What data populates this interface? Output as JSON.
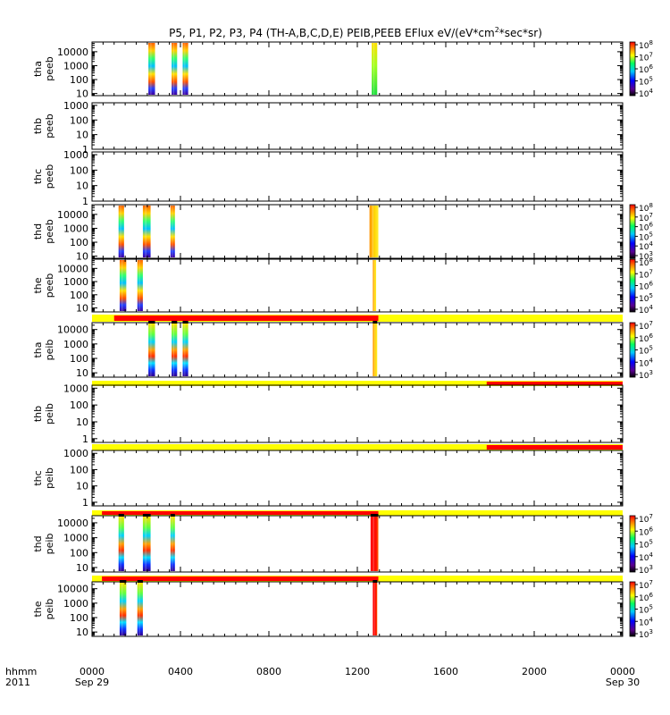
{
  "title": "P5, P1, P2, P3, P4 (TH-A,B,C,D,E) PEIB,PEEB EFlux eV/(eV*cm",
  "title_sup": "2",
  "title_tail": "*sec*sr)",
  "footer": {
    "hhmm_label": "hhmm",
    "year_label": "2011",
    "start_date": "Sep 29",
    "end_date": "Sep 30",
    "x_ticks": [
      "0000",
      "0400",
      "0800",
      "1200",
      "1600",
      "2000",
      "0000"
    ]
  },
  "chart_data": {
    "type": "heatmap",
    "title": "P5, P1, P2, P3, P4 (TH-A,B,C,D,E) PEIB,PEEB EFlux eV/(eV*cm^2*sec*sr)",
    "x_unit": "hhmm",
    "x_range_hours": [
      0,
      24
    ],
    "x_tick_hours": [
      0,
      4,
      8,
      12,
      16,
      20,
      24
    ],
    "colormap": [
      "#000000",
      "#5a0090",
      "#0000ff",
      "#00c8ff",
      "#00ff60",
      "#ffff00",
      "#ff8000",
      "#ff0000"
    ],
    "panels": [
      {
        "id": "tha-peeb",
        "probe": "tha",
        "instrument": "peeb",
        "ylabel": "tha\npeeb",
        "yticks": [
          "10",
          "100",
          "1000",
          "10000"
        ],
        "ylim": [
          7,
          50000
        ],
        "cbar_ticks": [
          "10^8",
          "10^7",
          "10^6",
          "10^5",
          "10^4"
        ],
        "flag_bar": null,
        "bursts": [
          {
            "start": 2.55,
            "end": 2.85,
            "style": "electron"
          },
          {
            "start": 3.6,
            "end": 3.85,
            "style": "electron"
          },
          {
            "start": 4.1,
            "end": 4.35,
            "style": "electron"
          },
          {
            "start": 12.65,
            "end": 12.9,
            "style": "greenband"
          }
        ]
      },
      {
        "id": "thb-peeb",
        "probe": "thb",
        "instrument": "peeb",
        "ylabel": "thb\npeeb",
        "yticks": [
          "1",
          "10",
          "100",
          "1000"
        ],
        "ylim": [
          1,
          1500
        ],
        "cbar_ticks": [],
        "flag_bar": null,
        "bursts": []
      },
      {
        "id": "thc-peeb",
        "probe": "thc",
        "instrument": "peeb",
        "ylabel": "thc\npeeb",
        "yticks": [
          "1",
          "10",
          "100",
          "1000"
        ],
        "ylim": [
          1,
          1500
        ],
        "cbar_ticks": [],
        "flag_bar": null,
        "bursts": []
      },
      {
        "id": "thd-peeb",
        "probe": "thd",
        "instrument": "peeb",
        "ylabel": "thd\npeeb",
        "yticks": [
          "10",
          "100",
          "1000",
          "10000"
        ],
        "ylim": [
          7,
          50000
        ],
        "cbar_ticks": [
          "10^8",
          "10^7",
          "10^6",
          "10^5",
          "10^4",
          "10^3"
        ],
        "flag_bar": null,
        "bursts": [
          {
            "start": 1.2,
            "end": 1.45,
            "style": "electron"
          },
          {
            "start": 2.3,
            "end": 2.65,
            "style": "electron"
          },
          {
            "start": 3.55,
            "end": 3.75,
            "style": "electron"
          },
          {
            "start": 12.55,
            "end": 12.95,
            "style": "yellowband"
          }
        ]
      },
      {
        "id": "the-peeb",
        "probe": "the",
        "instrument": "peeb",
        "ylabel": "the\npeeb",
        "yticks": [
          "10",
          "100",
          "1000",
          "10000"
        ],
        "ylim": [
          5,
          50000
        ],
        "cbar_ticks": [
          "10^8",
          "10^7",
          "10^6",
          "10^5",
          "10^4"
        ],
        "flag_bar": null,
        "bursts": [
          {
            "start": 1.25,
            "end": 1.55,
            "style": "electron"
          },
          {
            "start": 2.05,
            "end": 2.3,
            "style": "electron"
          },
          {
            "start": 12.7,
            "end": 12.85,
            "style": "yellowband"
          }
        ]
      },
      {
        "id": "tha-peib",
        "probe": "tha",
        "instrument": "peib",
        "ylabel": "tha\npeib",
        "yticks": [
          "10",
          "100",
          "1000",
          "10000"
        ],
        "ylim": [
          5,
          30000
        ],
        "cbar_ticks": [
          "10^7",
          "10^6",
          "10^5",
          "10^4",
          "10^3"
        ],
        "flag_bar": {
          "bg": "yellow",
          "red_segments": [
            [
              1.0,
              12.95
            ]
          ]
        },
        "bursts": [
          {
            "start": 2.55,
            "end": 2.85,
            "style": "ion"
          },
          {
            "start": 3.6,
            "end": 3.85,
            "style": "ion"
          },
          {
            "start": 4.1,
            "end": 4.35,
            "style": "ion"
          },
          {
            "start": 12.7,
            "end": 12.9,
            "style": "yellowband"
          }
        ]
      },
      {
        "id": "thb-peib",
        "probe": "thb",
        "instrument": "peib",
        "ylabel": "thb\npeib",
        "yticks": [
          "1",
          "10",
          "100",
          "1000"
        ],
        "ylim": [
          0.6,
          1500
        ],
        "cbar_ticks": [],
        "flag_bar": {
          "bg": "yellow",
          "red_segments": [
            [
              17.85,
              24
            ]
          ]
        },
        "bursts": []
      },
      {
        "id": "thc-peib",
        "probe": "thc",
        "instrument": "peib",
        "ylabel": "thc\npeib",
        "yticks": [
          "1",
          "10",
          "100",
          "1000"
        ],
        "ylim": [
          0.6,
          1500
        ],
        "cbar_ticks": [],
        "flag_bar": {
          "bg": "yellow",
          "red_segments": [
            [
              17.85,
              24
            ]
          ]
        },
        "bursts": []
      },
      {
        "id": "thd-peib",
        "probe": "thd",
        "instrument": "peib",
        "ylabel": "thd\npeib",
        "yticks": [
          "10",
          "100",
          "1000",
          "10000"
        ],
        "ylim": [
          5,
          30000
        ],
        "cbar_ticks": [
          "10^7",
          "10^6",
          "10^5",
          "10^4",
          "10^3"
        ],
        "flag_bar": {
          "bg": "yellow",
          "red_segments": [
            [
              0.45,
              12.95
            ]
          ]
        },
        "bursts": [
          {
            "start": 1.2,
            "end": 1.45,
            "style": "ion"
          },
          {
            "start": 2.3,
            "end": 2.65,
            "style": "ion"
          },
          {
            "start": 3.55,
            "end": 3.75,
            "style": "ion"
          },
          {
            "start": 12.6,
            "end": 12.95,
            "style": "redband"
          }
        ]
      },
      {
        "id": "the-peib",
        "probe": "the",
        "instrument": "peib",
        "ylabel": "the\npeib",
        "yticks": [
          "10",
          "100",
          "1000",
          "10000"
        ],
        "ylim": [
          5,
          30000
        ],
        "cbar_ticks": [
          "10^7",
          "10^6",
          "10^5",
          "10^4",
          "10^3"
        ],
        "flag_bar": {
          "bg": "yellow",
          "red_segments": [
            [
              0.45,
              12.95
            ]
          ]
        },
        "bursts": [
          {
            "start": 1.25,
            "end": 1.55,
            "style": "ion"
          },
          {
            "start": 2.05,
            "end": 2.3,
            "style": "ion"
          },
          {
            "start": 12.7,
            "end": 12.9,
            "style": "redband"
          }
        ]
      }
    ]
  }
}
